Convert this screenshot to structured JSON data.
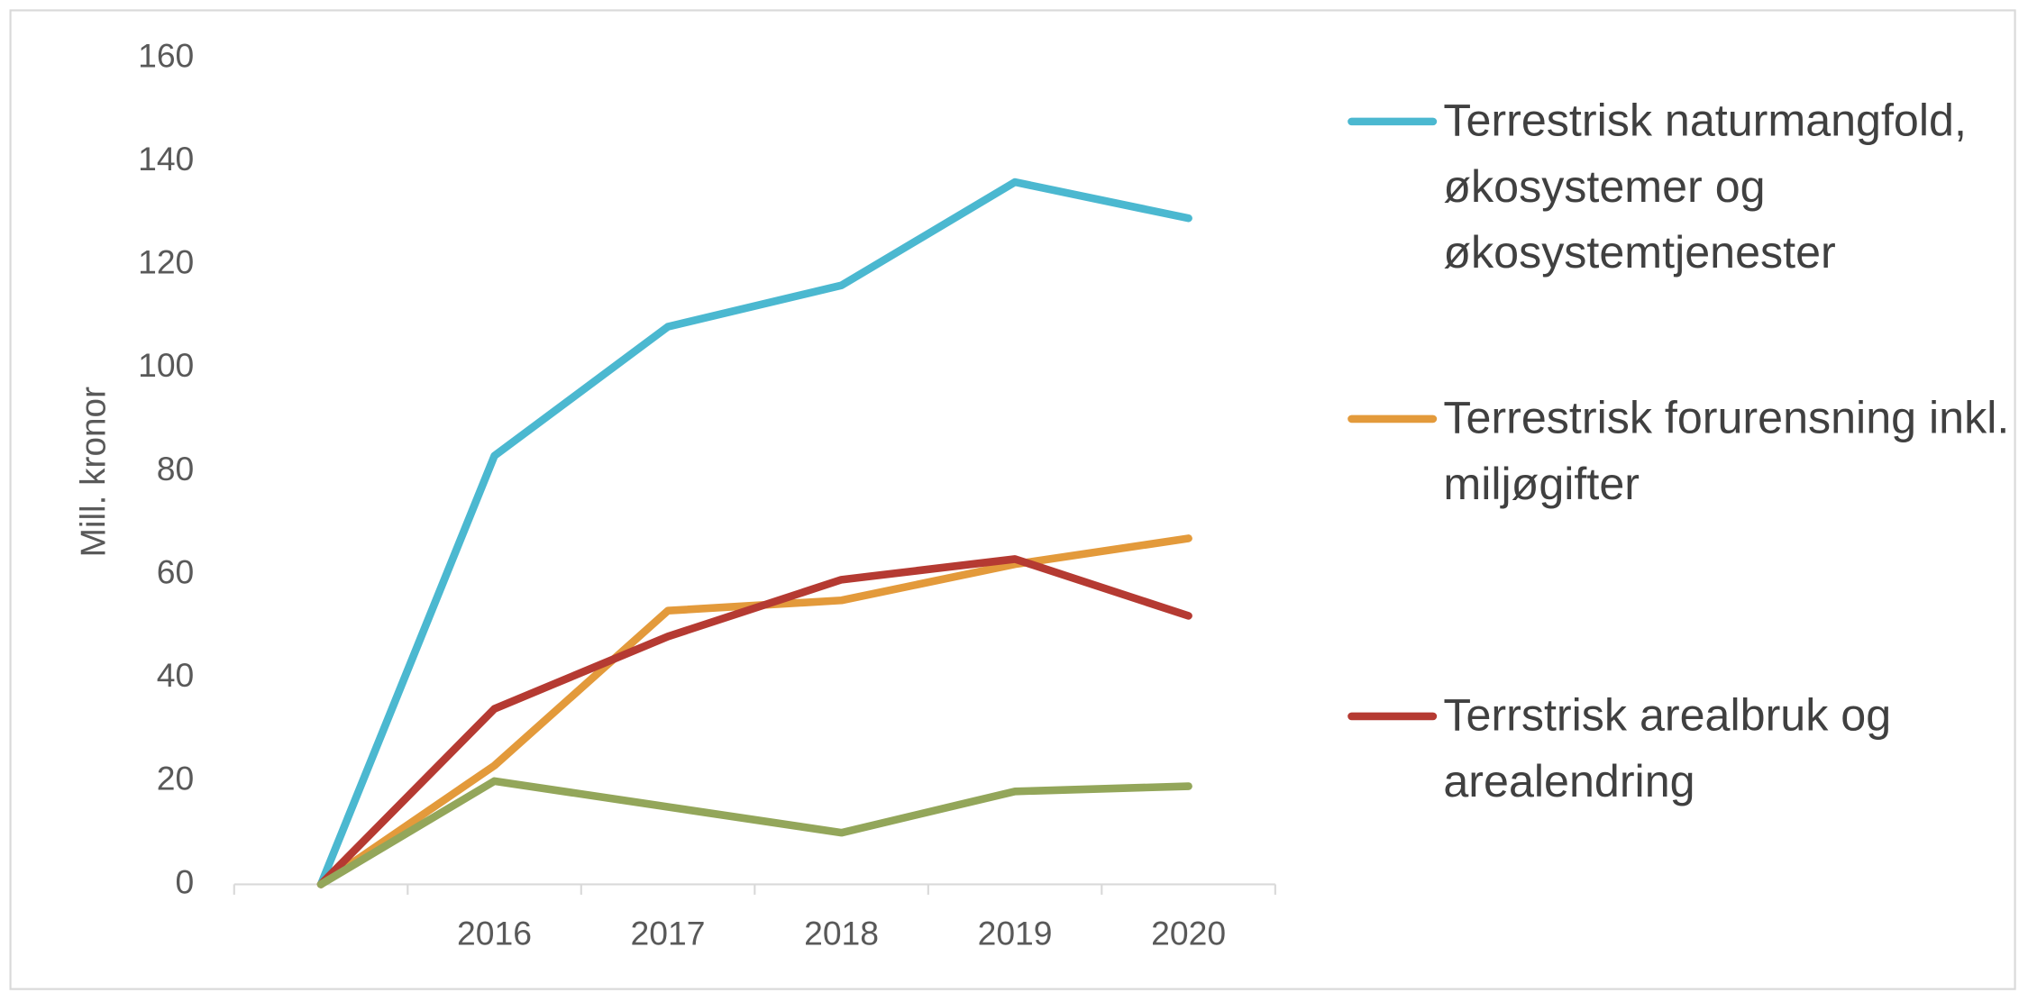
{
  "chart_data": {
    "type": "line",
    "y_label": "Mill. kronor",
    "categories": [
      null,
      "2016",
      "2017",
      "2018",
      "2019",
      "2020"
    ],
    "series": [
      {
        "name": "Terrestrisk naturmangfold, økosystemer og økosystemtjenester",
        "color": "#4bb8d0",
        "values": [
          0,
          83,
          108,
          116,
          136,
          129
        ]
      },
      {
        "name": "Terrestrisk forurensning inkl. miljøgifter",
        "color": "#e39a3b",
        "values": [
          0,
          23,
          53,
          55,
          62,
          67
        ]
      },
      {
        "name": "Terrstrisk arealbruk og arealendring",
        "color": "#b53a32",
        "values": [
          0,
          34,
          48,
          59,
          63,
          52
        ]
      },
      {
        "color": "#93a65a",
        "values": [
          0,
          20,
          15,
          10,
          18,
          19
        ]
      }
    ],
    "ylim": [
      0,
      160
    ],
    "yticks": [
      0,
      20,
      40,
      60,
      80,
      100,
      120,
      140,
      160
    ],
    "grid": false
  }
}
